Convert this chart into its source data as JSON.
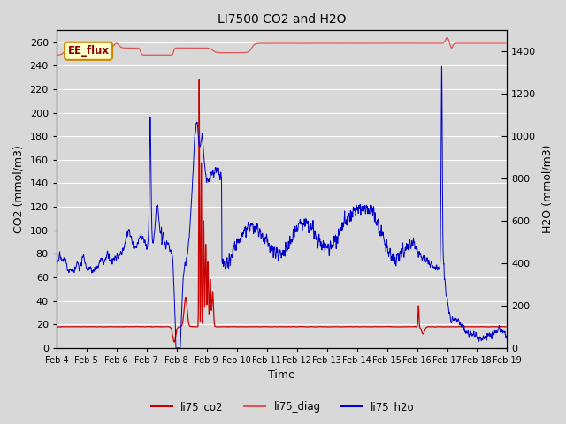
{
  "title": "LI7500 CO2 and H2O",
  "xlabel": "Time",
  "ylabel_left": "CO2 (mmol/m3)",
  "ylabel_right": "H2O (mmol/m3)",
  "annotation_text": "EE_flux",
  "ylim_left": [
    0,
    270
  ],
  "ylim_right": [
    0,
    1500
  ],
  "yticks_left": [
    0,
    20,
    40,
    60,
    80,
    100,
    120,
    140,
    160,
    180,
    200,
    220,
    240,
    260
  ],
  "yticks_right": [
    0,
    200,
    400,
    600,
    800,
    1000,
    1200,
    1400
  ],
  "xtick_labels": [
    "Feb 4",
    "Feb 5",
    "Feb 6",
    "Feb 7",
    "Feb 8",
    "Feb 9",
    "Feb 10",
    "Feb 11",
    "Feb 12",
    "Feb 13",
    "Feb 14",
    "Feb 15",
    "Feb 16",
    "Feb 17",
    "Feb 18",
    "Feb 19"
  ],
  "background_color": "#d8d8d8",
  "plot_bg_color": "#d8d8d8",
  "grid_color": "white",
  "li75_co2_color": "#cc0000",
  "li75_diag_color": "#dd5555",
  "li75_h2o_color": "#0000cc",
  "annotation_bg": "#ffffcc",
  "annotation_border": "#cc8800",
  "figsize": [
    6.4,
    4.8
  ],
  "dpi": 100
}
